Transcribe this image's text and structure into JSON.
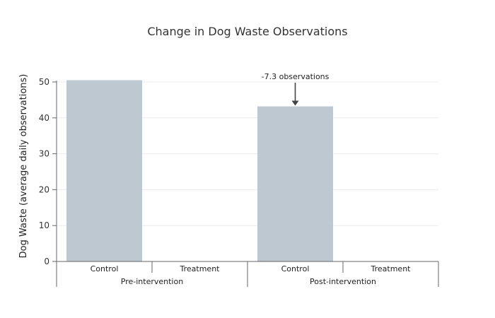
{
  "chart_data": {
    "type": "bar",
    "title": "Change in Dog Waste Observations",
    "ylabel": "Dog Waste (average daily observations)",
    "xlabel": "",
    "ylim": [
      0,
      55
    ],
    "yticks": [
      0,
      10,
      20,
      30,
      40,
      50
    ],
    "grid": true,
    "groups": [
      {
        "label": "Pre-intervention",
        "categories": [
          {
            "label": "Control",
            "value": 50.5
          },
          {
            "label": "Treatment",
            "value": null
          }
        ]
      },
      {
        "label": "Post-intervention",
        "categories": [
          {
            "label": "Control",
            "value": 43.2
          },
          {
            "label": "Treatment",
            "value": null
          }
        ]
      }
    ],
    "annotation": {
      "text": "-7.3 observations",
      "group": 1,
      "category": 0
    },
    "colors": {
      "bar": "#bec8d1",
      "axis": "#666666",
      "grid": "#ececec",
      "arrow": "#444444"
    }
  }
}
